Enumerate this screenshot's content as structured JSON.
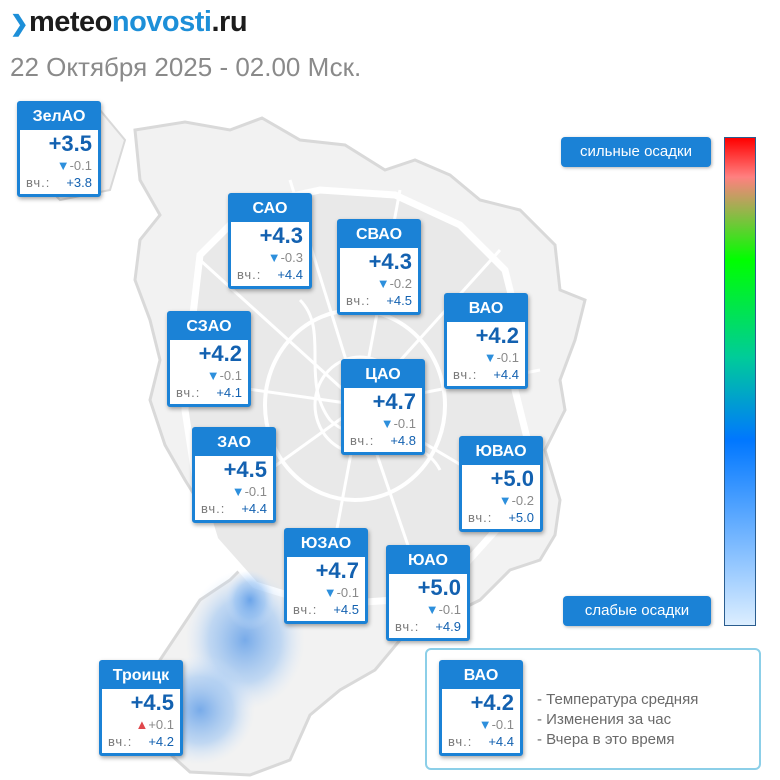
{
  "site": {
    "logo_main": "meteo",
    "logo_bold": "novosti",
    "logo_tld": ".ru"
  },
  "datetime": "22 Октября 2025 - 02.00 Мск.",
  "yesterday_label": "вч.:",
  "districts": [
    {
      "name": "ЗелАО",
      "temp": "+3.5",
      "change": "-0.1",
      "trend": "down",
      "yesterday": "+3.8"
    },
    {
      "name": "САО",
      "temp": "+4.3",
      "change": "-0.3",
      "trend": "down",
      "yesterday": "+4.4"
    },
    {
      "name": "СВАО",
      "temp": "+4.3",
      "change": "-0.2",
      "trend": "down",
      "yesterday": "+4.5"
    },
    {
      "name": "ВАО",
      "temp": "+4.2",
      "change": "-0.1",
      "trend": "down",
      "yesterday": "+4.4"
    },
    {
      "name": "СЗАО",
      "temp": "+4.2",
      "change": "-0.1",
      "trend": "down",
      "yesterday": "+4.1"
    },
    {
      "name": "ЦАО",
      "temp": "+4.7",
      "change": "-0.1",
      "trend": "down",
      "yesterday": "+4.8"
    },
    {
      "name": "ЗАО",
      "temp": "+4.5",
      "change": "-0.1",
      "trend": "down",
      "yesterday": "+4.4"
    },
    {
      "name": "ЮВАО",
      "temp": "+5.0",
      "change": "-0.2",
      "trend": "down",
      "yesterday": "+5.0"
    },
    {
      "name": "ЮЗАО",
      "temp": "+4.7",
      "change": "-0.1",
      "trend": "down",
      "yesterday": "+4.5"
    },
    {
      "name": "ЮАО",
      "temp": "+5.0",
      "change": "-0.1",
      "trend": "down",
      "yesterday": "+4.9"
    },
    {
      "name": "Троицк",
      "temp": "+4.5",
      "change": "+0.1",
      "trend": "up",
      "yesterday": "+4.2"
    }
  ],
  "precip_scale": {
    "top_label": "сильные осадки",
    "bottom_label": "слабые осадки",
    "gradient_colors": [
      "#ff0000",
      "#ff8080",
      "#00ff00",
      "#00cc99",
      "#0077ff",
      "#dceeff"
    ]
  },
  "legend": {
    "example": {
      "name": "ВАО",
      "temp": "+4.2",
      "change": "-0.1",
      "trend": "down",
      "yesterday": "+4.4"
    },
    "items": [
      "- Температура средняя",
      "- Изменения за час",
      "- Вчера в это время"
    ]
  },
  "colors": {
    "accent": "#1b82d6",
    "temp_text": "#1361b0",
    "down_arrow": "#2d8fdc",
    "up_arrow": "#e0474c"
  }
}
